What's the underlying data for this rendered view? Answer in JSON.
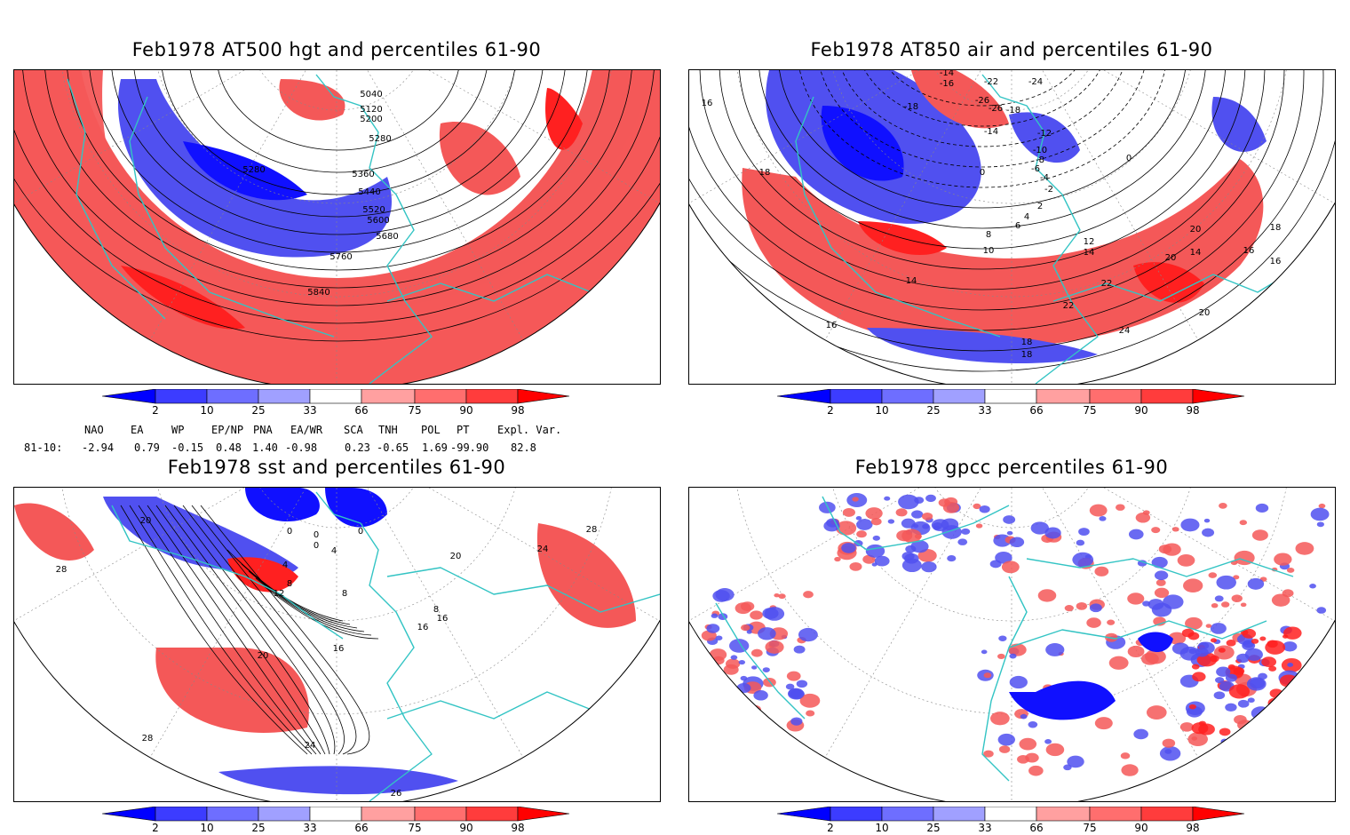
{
  "panels": [
    {
      "id": "p1",
      "title": "Feb1978 AT500 hgt and percentiles 61-90",
      "contour_labels": [
        "5040",
        "5120",
        "5200",
        "5280",
        "5280",
        "5360",
        "5440",
        "5520",
        "5600",
        "5680",
        "5760",
        "5840"
      ]
    },
    {
      "id": "p2",
      "title": "Feb1978 AT850 air and percentiles 61-90",
      "contour_labels": [
        "-14",
        "-16",
        "-18",
        "-22",
        "-24",
        "-26",
        "-26",
        "-18",
        "-14",
        "-12",
        "-10",
        "-8",
        "-6",
        "-4",
        "-2",
        "0",
        "0",
        "2",
        "4",
        "6",
        "8",
        "10",
        "12",
        "14",
        "14",
        "16",
        "16",
        "18",
        "18",
        "20",
        "20",
        "22",
        "22",
        "24",
        "14",
        "16",
        "18",
        "16",
        "20",
        "18"
      ]
    },
    {
      "id": "p3",
      "title": "Feb1978 sst and percentiles 61-90",
      "contour_labels": [
        "20",
        "28",
        "0",
        "0",
        "4",
        "8",
        "12",
        "0",
        "0",
        "4",
        "8",
        "16",
        "20",
        "24",
        "28",
        "24",
        "28",
        "16",
        "16",
        "8",
        "20",
        "26"
      ]
    },
    {
      "id": "p4",
      "title": "Feb1978 gpcc percentiles 61-90",
      "contour_labels": []
    }
  ],
  "colorbar": {
    "labels": [
      "2",
      "10",
      "25",
      "33",
      "66",
      "75",
      "90",
      "98"
    ],
    "colors": [
      "#0000ff",
      "#3c3cff",
      "#6e6eff",
      "#a0a0ff",
      "#ffffff",
      "#ffa0a0",
      "#ff6e6e",
      "#ff3c3c",
      "#ff0000"
    ]
  },
  "indices": {
    "headers": [
      "NAO",
      "EA",
      "WP",
      "EP/NP",
      "PNA",
      "EA/WR",
      "SCA",
      "TNH",
      "POL",
      "PT",
      "Expl. Var."
    ],
    "row_label": "81-10:",
    "values": [
      "-2.94",
      "0.79",
      "-0.15",
      "0.48",
      "1.40",
      "-0.98",
      "0.23",
      "-0.65",
      "1.69",
      "-99.90",
      "82.8"
    ]
  },
  "colors": {
    "coast": "#33c4c4",
    "contour": "#000000",
    "red": "#f45858",
    "red_strong": "#ff2020",
    "blue": "#5050f0",
    "blue_strong": "#1010ff"
  }
}
